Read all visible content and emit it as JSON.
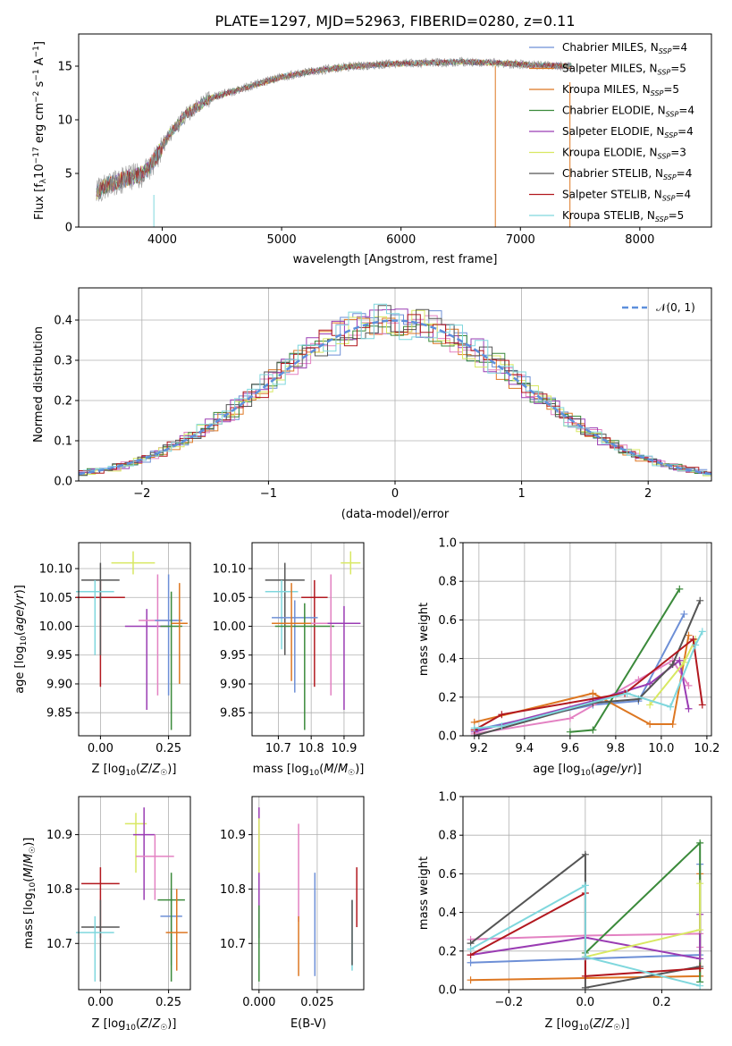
{
  "colors": {
    "c0": "#6d8fd6",
    "c1": "#dd7722",
    "c2": "#e381c2",
    "c3": "#3b8a3b",
    "c4": "#9a3cb3",
    "c5": "#d8e862",
    "c6": "#555555",
    "c7": "#b2181f",
    "c8": "#7fd7dd",
    "spec": "#909090",
    "normal": "#5d8fdc"
  },
  "chart_data": [
    {
      "id": "spectrum",
      "type": "line",
      "title": "PLATE=1297, MJD=52963, FIBERID=0280, z=0.11",
      "xlabel": "wavelength [Angstrom, rest frame]",
      "ylabel_main": "Flux [f",
      "ylabel_sub": "λ",
      "ylabel_rest": "10",
      "ylabel_exp1": "−17",
      "ylabel_mid": " erg cm",
      "ylabel_exp2": "−2",
      "ylabel_s": " s",
      "ylabel_exp3": "−1",
      "ylabel_a": " A",
      "ylabel_exp4": "−1",
      "ylabel_end": "]",
      "xlim": [
        3300,
        8600
      ],
      "ylim": [
        0,
        18
      ],
      "xticks": [
        "4000",
        "5000",
        "6000",
        "7000",
        "8000"
      ],
      "yticks": [
        "0",
        "5",
        "10",
        "15"
      ],
      "continuum": [
        [
          3450,
          3.2
        ],
        [
          3550,
          4.0
        ],
        [
          3700,
          4.5
        ],
        [
          3850,
          5.0
        ],
        [
          3950,
          6.5
        ],
        [
          4050,
          8.5
        ],
        [
          4200,
          10.5
        ],
        [
          4400,
          12.0
        ],
        [
          4700,
          13.0
        ],
        [
          5000,
          14.0
        ],
        [
          5300,
          14.6
        ],
        [
          5600,
          15.0
        ],
        [
          5900,
          15.2
        ],
        [
          6200,
          15.3
        ],
        [
          6500,
          15.4
        ],
        [
          6800,
          15.3
        ],
        [
          7100,
          15.1
        ],
        [
          7430,
          15.0
        ]
      ],
      "legend": [
        {
          "name": "Chabrier MILES",
          "n": "4",
          "color": "c0"
        },
        {
          "name": "Salpeter MILES",
          "n": "5",
          "color": "c1"
        },
        {
          "name": "Kroupa MILES",
          "n": "5",
          "color": "c1"
        },
        {
          "name": "Chabrier ELODIE",
          "n": "4",
          "color": "c3"
        },
        {
          "name": "Salpeter ELODIE",
          "n": "4",
          "color": "c4"
        },
        {
          "name": "Kroupa ELODIE",
          "n": "3",
          "color": "c5"
        },
        {
          "name": "Chabrier STELIB",
          "n": "4",
          "color": "c6"
        },
        {
          "name": "Salpeter STELIB",
          "n": "4",
          "color": "c7"
        },
        {
          "name": "Kroupa STELIB",
          "n": "5",
          "color": "c8"
        }
      ],
      "legend_placement": "right"
    },
    {
      "id": "residual-histogram",
      "type": "histogram",
      "xlabel": "(data-model)/error",
      "ylabel": "Normed distribution",
      "xlim": [
        -2.5,
        2.5
      ],
      "ylim": [
        0,
        0.48
      ],
      "xticks": [
        "−2",
        "−1",
        "0",
        "1",
        "2"
      ],
      "yticks": [
        "0.0",
        "0.1",
        "0.2",
        "0.3",
        "0.4"
      ],
      "grid": true,
      "legend": [
        {
          "name": "𝒩(0, 1)",
          "color": "normal"
        }
      ],
      "legend_placement": "top-right"
    },
    {
      "id": "age-vs-metallicity",
      "type": "errorbar",
      "xlabel": "Z [log₁₀(Z/Z☉)]",
      "ylabel": "age  [log₁₀(age/yr)]",
      "xlim": [
        -0.08,
        0.33
      ],
      "ylim": [
        9.81,
        10.145
      ],
      "xticks": [
        "0.00",
        "0.25"
      ],
      "yticks": [
        "9.85",
        "9.90",
        "9.95",
        "10.00",
        "10.05",
        "10.10"
      ],
      "points": [
        {
          "x": 0.0,
          "y": 10.05,
          "xerr": 0.09,
          "yerr_lo": 0.155,
          "yerr_hi": 0.03,
          "color": "c7"
        },
        {
          "x": 0.0,
          "y": 10.08,
          "xerr": 0.07,
          "yerr_lo": 0.13,
          "yerr_hi": 0.03,
          "color": "c6"
        },
        {
          "x": -0.02,
          "y": 10.06,
          "xerr": 0.07,
          "yerr_lo": 0.11,
          "yerr_hi": 0.02,
          "color": "c8"
        },
        {
          "x": 0.12,
          "y": 10.11,
          "xerr": 0.08,
          "yerr_lo": 0.02,
          "yerr_hi": 0.02,
          "color": "c5"
        },
        {
          "x": 0.17,
          "y": 10.0,
          "xerr": 0.08,
          "yerr_lo": 0.145,
          "yerr_hi": 0.03,
          "color": "c4"
        },
        {
          "x": 0.21,
          "y": 10.01,
          "xerr": 0.07,
          "yerr_lo": 0.13,
          "yerr_hi": 0.08,
          "color": "c2"
        },
        {
          "x": 0.25,
          "y": 10.01,
          "xerr": 0.05,
          "yerr_lo": 0.13,
          "yerr_hi": 0.08,
          "color": "c0"
        },
        {
          "x": 0.26,
          "y": 10.0,
          "xerr": 0.04,
          "yerr_lo": 0.18,
          "yerr_hi": 0.06,
          "color": "c3"
        },
        {
          "x": 0.29,
          "y": 10.005,
          "xerr": 0.03,
          "yerr_lo": 0.105,
          "yerr_hi": 0.07,
          "color": "c1"
        }
      ]
    },
    {
      "id": "age-vs-mass",
      "type": "errorbar",
      "xlabel": "mass [log₁₀(M/M☉)]",
      "ylabel": "",
      "xlim": [
        10.62,
        10.96
      ],
      "ylim": [
        9.81,
        10.145
      ],
      "xticks": [
        "10.7",
        "10.8",
        "10.9"
      ],
      "yticks": [
        "9.85",
        "9.90",
        "9.95",
        "10.00",
        "10.05",
        "10.10"
      ],
      "points": [
        {
          "x": 10.72,
          "y": 10.08,
          "xerr": 0.06,
          "yerr_lo": 0.13,
          "yerr_hi": 0.03,
          "color": "c6"
        },
        {
          "x": 10.71,
          "y": 10.06,
          "xerr": 0.05,
          "yerr_lo": 0.1,
          "yerr_hi": 0.02,
          "color": "c8"
        },
        {
          "x": 10.81,
          "y": 10.05,
          "xerr": 0.04,
          "yerr_lo": 0.155,
          "yerr_hi": 0.03,
          "color": "c7"
        },
        {
          "x": 10.92,
          "y": 10.11,
          "xerr": 0.03,
          "yerr_lo": 0.02,
          "yerr_hi": 0.02,
          "color": "c5"
        },
        {
          "x": 10.75,
          "y": 10.015,
          "xerr": 0.07,
          "yerr_lo": 0.13,
          "yerr_hi": 0.03,
          "color": "c0"
        },
        {
          "x": 10.78,
          "y": 10.0,
          "xerr": 0.09,
          "yerr_lo": 0.18,
          "yerr_hi": 0.04,
          "color": "c3"
        },
        {
          "x": 10.86,
          "y": 10.005,
          "xerr": 0.09,
          "yerr_lo": 0.125,
          "yerr_hi": 0.085,
          "color": "c2"
        },
        {
          "x": 10.9,
          "y": 10.005,
          "xerr": 0.05,
          "yerr_lo": 0.15,
          "yerr_hi": 0.03,
          "color": "c4"
        },
        {
          "x": 10.74,
          "y": 10.005,
          "xerr": 0.06,
          "yerr_lo": 0.1,
          "yerr_hi": 0.07,
          "color": "c1"
        }
      ]
    },
    {
      "id": "mass-weight-vs-age",
      "type": "line",
      "xlabel": "age  [log₁₀(age/yr)]",
      "ylabel": "mass weight",
      "xlim": [
        9.13,
        10.22
      ],
      "ylim": [
        0,
        1.0
      ],
      "xticks": [
        "9.2",
        "9.4",
        "9.6",
        "9.8",
        "10.0",
        "10.2"
      ],
      "yticks": [
        "0.0",
        "0.2",
        "0.4",
        "0.6",
        "0.8",
        "1.0"
      ],
      "grid": true,
      "series": [
        {
          "color": "c0",
          "points": [
            [
              9.18,
              0.03
            ],
            [
              9.7,
              0.16
            ],
            [
              9.9,
              0.18
            ],
            [
              10.1,
              0.63
            ]
          ]
        },
        {
          "color": "c1",
          "points": [
            [
              9.18,
              0.07
            ],
            [
              9.7,
              0.22
            ],
            [
              9.95,
              0.06
            ],
            [
              10.05,
              0.06
            ],
            [
              10.12,
              0.52
            ]
          ]
        },
        {
          "color": "c2",
          "points": [
            [
              9.18,
              0.01
            ],
            [
              9.6,
              0.09
            ],
            [
              9.9,
              0.29
            ],
            [
              10.05,
              0.39
            ],
            [
              10.12,
              0.26
            ]
          ]
        },
        {
          "color": "c3",
          "points": [
            [
              9.6,
              0.02
            ],
            [
              9.7,
              0.03
            ],
            [
              10.08,
              0.76
            ]
          ]
        },
        {
          "color": "c4",
          "points": [
            [
              9.18,
              0.02
            ],
            [
              9.7,
              0.18
            ],
            [
              9.95,
              0.27
            ],
            [
              10.08,
              0.39
            ],
            [
              10.12,
              0.14
            ]
          ]
        },
        {
          "color": "c5",
          "points": [
            [
              9.95,
              0.16
            ],
            [
              10.1,
              0.38
            ],
            [
              10.15,
              0.5
            ]
          ]
        },
        {
          "color": "c6",
          "points": [
            [
              9.18,
              0.0
            ],
            [
              9.7,
              0.17
            ],
            [
              9.9,
              0.19
            ],
            [
              10.05,
              0.37
            ],
            [
              10.17,
              0.7
            ]
          ]
        },
        {
          "color": "c7",
          "points": [
            [
              9.18,
              0.03
            ],
            [
              9.3,
              0.11
            ],
            [
              9.84,
              0.22
            ],
            [
              10.14,
              0.5
            ],
            [
              10.18,
              0.16
            ]
          ]
        },
        {
          "color": "c8",
          "points": [
            [
              9.18,
              0.04
            ],
            [
              9.3,
              0.05
            ],
            [
              9.85,
              0.22
            ],
            [
              10.04,
              0.15
            ],
            [
              10.15,
              0.47
            ],
            [
              10.18,
              0.54
            ]
          ]
        }
      ]
    },
    {
      "id": "mass-vs-metallicity",
      "type": "errorbar",
      "xlabel": "Z [log₁₀(Z/Z☉)]",
      "ylabel": "mass [log₁₀(M/M☉)]",
      "xlim": [
        -0.08,
        0.33
      ],
      "ylim": [
        10.615,
        10.97
      ],
      "xticks": [
        "0.00",
        "0.25"
      ],
      "yticks": [
        "10.7",
        "10.8",
        "10.9"
      ],
      "points": [
        {
          "x": 0.0,
          "y": 10.81,
          "xerr": 0.07,
          "yerr_lo": 0.1,
          "yerr_hi": 0.03,
          "color": "c7"
        },
        {
          "x": 0.0,
          "y": 10.73,
          "xerr": 0.07,
          "yerr_lo": 0.1,
          "yerr_hi": 0.05,
          "color": "c6"
        },
        {
          "x": -0.02,
          "y": 10.72,
          "xerr": 0.07,
          "yerr_lo": 0.09,
          "yerr_hi": 0.03,
          "color": "c8"
        },
        {
          "x": 0.13,
          "y": 10.92,
          "xerr": 0.04,
          "yerr_lo": 0.09,
          "yerr_hi": 0.02,
          "color": "c5"
        },
        {
          "x": 0.16,
          "y": 10.9,
          "xerr": 0.04,
          "yerr_lo": 0.12,
          "yerr_hi": 0.05,
          "color": "c4"
        },
        {
          "x": 0.2,
          "y": 10.86,
          "xerr": 0.07,
          "yerr_lo": 0.08,
          "yerr_hi": 0.04,
          "color": "c2"
        },
        {
          "x": 0.26,
          "y": 10.75,
          "xerr": 0.04,
          "yerr_lo": 0.09,
          "yerr_hi": 0.05,
          "color": "c0"
        },
        {
          "x": 0.26,
          "y": 10.78,
          "xerr": 0.05,
          "yerr_lo": 0.15,
          "yerr_hi": 0.05,
          "color": "c3"
        },
        {
          "x": 0.28,
          "y": 10.72,
          "xerr": 0.04,
          "yerr_lo": 0.07,
          "yerr_hi": 0.08,
          "color": "c1"
        }
      ]
    },
    {
      "id": "mass-vs-extinction",
      "type": "errorbar",
      "xlabel": "E(B-V)",
      "ylabel": "",
      "xlim": [
        -0.003,
        0.045
      ],
      "ylim": [
        10.615,
        10.97
      ],
      "xticks": [
        "0.000",
        "0.025"
      ],
      "yticks": [
        "10.7",
        "10.8",
        "10.9"
      ],
      "points": [
        {
          "x": 0.0,
          "y": 10.86,
          "xerr": 0.0,
          "yerr_lo": 0.15,
          "yerr_hi": 0.09,
          "color": "c4"
        },
        {
          "x": 0.0,
          "y": 10.88,
          "xerr": 0.0,
          "yerr_lo": 0.05,
          "yerr_hi": 0.05,
          "color": "c5"
        },
        {
          "x": 0.0,
          "y": 10.72,
          "xerr": 0.0,
          "yerr_lo": 0.09,
          "yerr_hi": 0.05,
          "color": "c3"
        },
        {
          "x": 0.017,
          "y": 10.83,
          "xerr": 0.0,
          "yerr_lo": 0.09,
          "yerr_hi": 0.09,
          "color": "c2"
        },
        {
          "x": 0.017,
          "y": 10.7,
          "xerr": 0.0,
          "yerr_lo": 0.06,
          "yerr_hi": 0.05,
          "color": "c1"
        },
        {
          "x": 0.024,
          "y": 10.73,
          "xerr": 0.0,
          "yerr_lo": 0.09,
          "yerr_hi": 0.1,
          "color": "c0"
        },
        {
          "x": 0.04,
          "y": 10.72,
          "xerr": 0.0,
          "yerr_lo": 0.07,
          "yerr_hi": 0.06,
          "color": "c8"
        },
        {
          "x": 0.04,
          "y": 10.71,
          "xerr": 0.0,
          "yerr_lo": 0.05,
          "yerr_hi": 0.07,
          "color": "c6"
        },
        {
          "x": 0.042,
          "y": 10.78,
          "xerr": 0.0,
          "yerr_lo": 0.05,
          "yerr_hi": 0.06,
          "color": "c7"
        }
      ]
    },
    {
      "id": "mass-weight-vs-metallicity",
      "type": "line",
      "xlabel": "Z [log₁₀(Z/Z☉)]",
      "ylabel": "mass weight",
      "xlim": [
        -0.32,
        0.33
      ],
      "ylim": [
        0,
        1.0
      ],
      "xticks": [
        "−0.2",
        "0.0",
        "0.2"
      ],
      "yticks": [
        "0.0",
        "0.2",
        "0.4",
        "0.6",
        "0.8",
        "1.0"
      ],
      "grid": true,
      "series": [
        {
          "color": "c0",
          "points": [
            [
              -0.3,
              0.14
            ],
            [
              0.0,
              0.16
            ],
            [
              0.3,
              0.18
            ],
            [
              0.3,
              0.65
            ]
          ]
        },
        {
          "color": "c1",
          "points": [
            [
              -0.3,
              0.05
            ],
            [
              0.0,
              0.06
            ],
            [
              0.3,
              0.07
            ],
            [
              0.3,
              0.6
            ]
          ]
        },
        {
          "color": "c2",
          "points": [
            [
              -0.3,
              0.26
            ],
            [
              0.0,
              0.28
            ],
            [
              0.3,
              0.29
            ],
            [
              0.3,
              0.22
            ]
          ]
        },
        {
          "color": "c3",
          "points": [
            [
              0.0,
              0.19
            ],
            [
              0.3,
              0.76
            ],
            [
              0.3,
              0.04
            ]
          ]
        },
        {
          "color": "c4",
          "points": [
            [
              -0.3,
              0.18
            ],
            [
              0.0,
              0.27
            ],
            [
              0.3,
              0.16
            ],
            [
              0.3,
              0.39
            ]
          ]
        },
        {
          "color": "c5",
          "points": [
            [
              0.0,
              0.17
            ],
            [
              0.3,
              0.31
            ],
            [
              0.3,
              0.55
            ]
          ]
        },
        {
          "color": "c6",
          "points": [
            [
              -0.3,
              0.24
            ],
            [
              0.0,
              0.7
            ],
            [
              0.0,
              0.01
            ],
            [
              0.3,
              0.12
            ]
          ]
        },
        {
          "color": "c7",
          "points": [
            [
              -0.3,
              0.18
            ],
            [
              0.0,
              0.5
            ],
            [
              0.0,
              0.07
            ],
            [
              0.3,
              0.11
            ]
          ]
        },
        {
          "color": "c8",
          "points": [
            [
              -0.3,
              0.21
            ],
            [
              0.0,
              0.54
            ],
            [
              0.0,
              0.17
            ],
            [
              0.3,
              0.02
            ]
          ]
        }
      ]
    }
  ]
}
